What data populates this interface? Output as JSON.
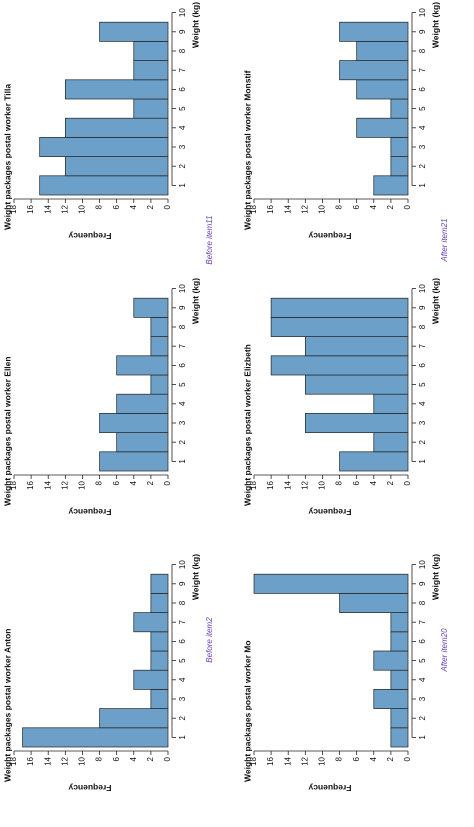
{
  "chart_data": [
    {
      "type": "histogram",
      "title": "Weight packages postal worker Anton",
      "x_label": "Weight (kg)",
      "y_label": "Frequency",
      "bins": [
        0.5,
        1.5,
        2.5,
        3.5,
        4.5,
        5.5,
        6.5,
        7.5,
        8.5,
        9.5
      ],
      "values": [
        17,
        8,
        2,
        4,
        2,
        2,
        4,
        2,
        2
      ],
      "color": "#6ca0c8",
      "xlim": [
        0.5,
        10.5
      ],
      "xticks": [
        1,
        2,
        3,
        4,
        5,
        6,
        7,
        8,
        9,
        10
      ],
      "ylim": [
        0,
        18
      ],
      "yticks": [
        0,
        2,
        4,
        6,
        8,
        10,
        12,
        14,
        16,
        18
      ]
    },
    {
      "type": "histogram",
      "title": "Weight packages postal worker Ellen",
      "x_label": "Weight (kg)",
      "y_label": "Frequency",
      "bins": [
        0.5,
        1.5,
        2.5,
        3.5,
        4.5,
        5.5,
        6.5,
        7.5,
        8.5,
        9.5
      ],
      "values": [
        8,
        6,
        8,
        6,
        2,
        6,
        2,
        2,
        4
      ],
      "color": "#6ca0c8",
      "xlim": [
        0.5,
        10.5
      ],
      "xticks": [
        1,
        2,
        3,
        4,
        5,
        6,
        7,
        8,
        9,
        10
      ],
      "ylim": [
        0,
        18
      ],
      "yticks": [
        0,
        2,
        4,
        6,
        8,
        10,
        12,
        14,
        16,
        18
      ]
    },
    {
      "type": "histogram",
      "title": "Weight packages postal worker Tilla",
      "x_label": "Weight (kg)",
      "y_label": "Frequency",
      "bins": [
        0.5,
        1.5,
        2.5,
        3.5,
        4.5,
        5.5,
        6.5,
        7.5,
        8.5,
        9.5
      ],
      "values": [
        15,
        12,
        15,
        12,
        4,
        12,
        4,
        4,
        8
      ],
      "color": "#6ca0c8",
      "xlim": [
        0.5,
        10.5
      ],
      "xticks": [
        1,
        2,
        3,
        4,
        5,
        6,
        7,
        8,
        9,
        10
      ],
      "ylim": [
        0,
        18
      ],
      "yticks": [
        0,
        2,
        4,
        6,
        8,
        10,
        12,
        14,
        16,
        18
      ]
    },
    {
      "type": "histogram",
      "title": "Weight packages postal worker Mo",
      "x_label": "Weight (kg)",
      "y_label": "Frequency",
      "bins": [
        0.5,
        1.5,
        2.5,
        3.5,
        4.5,
        5.5,
        6.5,
        7.5,
        8.5,
        9.5
      ],
      "values": [
        2,
        2,
        4,
        2,
        4,
        2,
        2,
        8,
        18
      ],
      "color": "#6ca0c8",
      "xlim": [
        0.5,
        10.5
      ],
      "xticks": [
        1,
        2,
        3,
        4,
        5,
        6,
        7,
        8,
        9,
        10
      ],
      "ylim": [
        0,
        18
      ],
      "yticks": [
        0,
        2,
        4,
        6,
        8,
        10,
        12,
        14,
        16,
        18
      ]
    },
    {
      "type": "histogram",
      "title": "Weight packages postal worker Elizbeth",
      "x_label": "Weight (kg)",
      "y_label": "Frequency",
      "bins": [
        0.5,
        1.5,
        2.5,
        3.5,
        4.5,
        5.5,
        6.5,
        7.5,
        8.5,
        9.5
      ],
      "values": [
        8,
        4,
        12,
        4,
        12,
        16,
        12,
        16,
        16
      ],
      "color": "#6ca0c8",
      "xlim": [
        0.5,
        10.5
      ],
      "xticks": [
        1,
        2,
        3,
        4,
        5,
        6,
        7,
        8,
        9,
        10
      ],
      "ylim": [
        0,
        18
      ],
      "yticks": [
        0,
        2,
        4,
        6,
        8,
        10,
        12,
        14,
        16,
        18
      ]
    },
    {
      "type": "histogram",
      "title": "Weight packages postal worker Monstif",
      "x_label": "Weight (kg)",
      "y_label": "Frequency",
      "bins": [
        0.5,
        1.5,
        2.5,
        3.5,
        4.5,
        5.5,
        6.5,
        7.5,
        8.5,
        9.5
      ],
      "values": [
        4,
        2,
        2,
        6,
        2,
        6,
        8,
        6,
        8
      ],
      "color": "#6ca0c8",
      "xlim": [
        0.5,
        10.5
      ],
      "xticks": [
        1,
        2,
        3,
        4,
        5,
        6,
        7,
        8,
        9,
        10
      ],
      "ylim": [
        0,
        18
      ],
      "yticks": [
        0,
        2,
        4,
        6,
        8,
        10,
        12,
        14,
        16,
        18
      ]
    }
  ],
  "notes": [
    "Before item2",
    "Before item11",
    "After item20",
    "After item21"
  ]
}
